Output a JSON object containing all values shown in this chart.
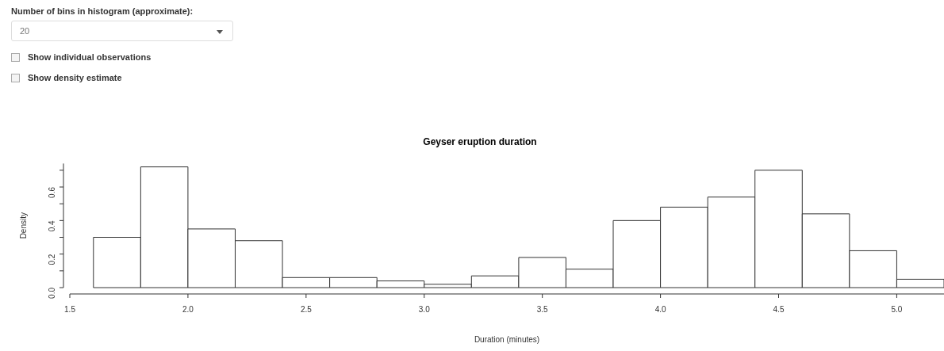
{
  "chart_data": {
    "type": "histogram",
    "title": "Geyser eruption duration",
    "xlabel": "Duration (minutes)",
    "ylabel": "Density",
    "bins": [
      1.6,
      1.8,
      2.0,
      2.2,
      2.4,
      2.6,
      2.8,
      3.0,
      3.2,
      3.4,
      3.6,
      3.8,
      4.0,
      4.2,
      4.4,
      4.6,
      4.8,
      5.0,
      5.2
    ],
    "values": [
      0.3,
      0.72,
      0.35,
      0.28,
      0.06,
      0.06,
      0.04,
      0.02,
      0.07,
      0.18,
      0.11,
      0.4,
      0.48,
      0.54,
      0.7,
      0.44,
      0.22,
      0.05
    ],
    "color": "#ffffff",
    "xlim": [
      1.5,
      5.2
    ],
    "xticks": [
      {
        "value": 1.5,
        "label": "1.5"
      },
      {
        "value": 2,
        "label": "2.0"
      },
      {
        "value": 2.5,
        "label": "2.5"
      },
      {
        "value": 3,
        "label": "3.0"
      },
      {
        "value": 3.5,
        "label": "3.5"
      },
      {
        "value": 4,
        "label": "4.0"
      },
      {
        "value": 4.5,
        "label": "4.5"
      },
      {
        "value": 5,
        "label": "5.0"
      }
    ],
    "ylim": [
      0,
      0.74
    ],
    "yticks": [
      {
        "value": 0,
        "label": "0.0"
      },
      {
        "value": 0.1,
        "label": null
      },
      {
        "value": 0.2,
        "label": "0.2"
      },
      {
        "value": 0.3,
        "label": null
      },
      {
        "value": 0.4,
        "label": "0.4"
      },
      {
        "value": 0.5,
        "label": null
      },
      {
        "value": 0.6,
        "label": "0.6"
      },
      {
        "value": 0.7,
        "label": null
      }
    ],
    "annotations": [
      "Number of bins in histogram (approximate):",
      "20",
      "Show individual observations",
      "Show density estimate"
    ]
  }
}
